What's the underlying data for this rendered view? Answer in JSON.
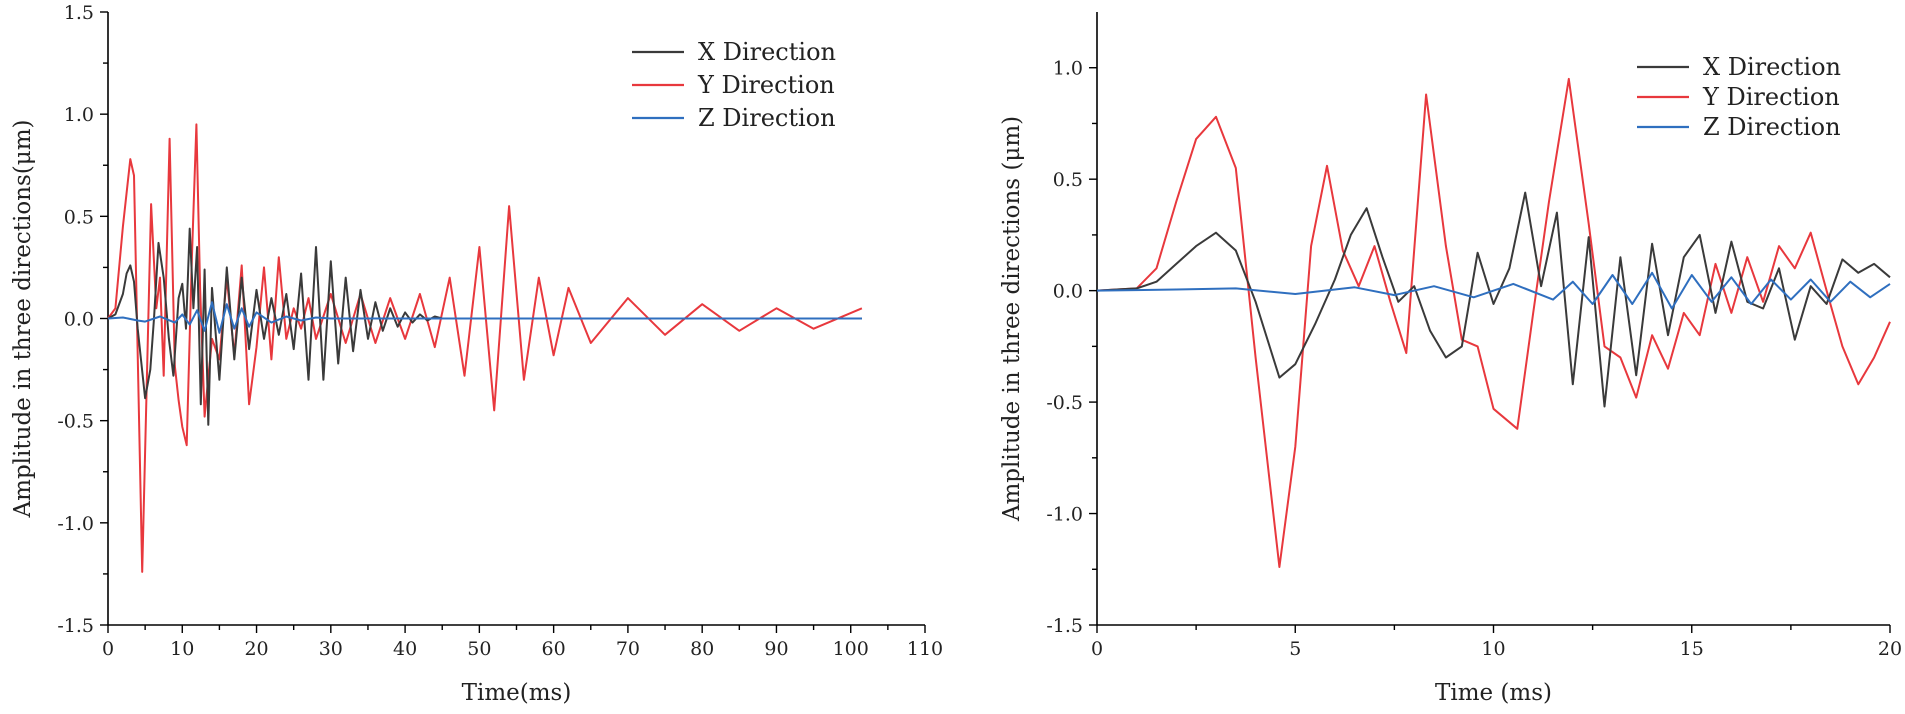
{
  "chart_data": [
    {
      "type": "line",
      "title": "",
      "xlabel": "Time(ms)",
      "ylabel": "Amplitude in three directions(μm)",
      "xlim": [
        0,
        110
      ],
      "ylim": [
        -1.5,
        1.5
      ],
      "xticks": [
        0,
        10,
        20,
        30,
        40,
        50,
        60,
        70,
        80,
        90,
        100,
        110
      ],
      "yticks": [
        -1.5,
        -1.0,
        -0.5,
        0.0,
        0.5,
        1.0,
        1.5
      ],
      "xtick_labels": [
        "0",
        "10",
        "20",
        "30",
        "40",
        "50",
        "60",
        "70",
        "80",
        "90",
        "100",
        "110"
      ],
      "ytick_labels": [
        "-1.5",
        "-1.0",
        "-0.5",
        "0.0",
        "0.5",
        "1.0",
        "1.5"
      ],
      "legend_position": "top-right",
      "series": [
        {
          "name": "X Direction",
          "color": "#3a3a3a",
          "x": [
            0,
            1,
            2,
            2.5,
            3,
            3.5,
            4,
            5,
            5.7,
            6.2,
            6.8,
            7.5,
            8.2,
            8.8,
            9.5,
            10,
            10.5,
            11,
            11.5,
            12,
            12.5,
            13,
            13.5,
            14,
            15,
            16,
            17,
            18,
            19,
            20,
            21,
            22,
            23,
            24,
            25,
            26,
            27,
            28,
            29,
            30,
            31,
            32,
            33,
            34,
            35,
            36,
            37,
            38,
            39,
            40,
            41,
            42,
            43,
            44,
            45,
            46,
            47,
            48,
            49,
            50,
            52,
            55,
            60,
            70,
            80,
            90,
            101.5
          ],
          "values": [
            0,
            0.02,
            0.12,
            0.22,
            0.26,
            0.18,
            -0.05,
            -0.39,
            -0.25,
            0.0,
            0.37,
            0.2,
            -0.1,
            -0.28,
            0.1,
            0.17,
            -0.05,
            0.44,
            0.05,
            0.35,
            -0.42,
            0.24,
            -0.52,
            0.15,
            -0.3,
            0.25,
            -0.2,
            0.2,
            -0.15,
            0.14,
            -0.1,
            0.1,
            -0.08,
            0.12,
            -0.15,
            0.22,
            -0.3,
            0.35,
            -0.3,
            0.28,
            -0.22,
            0.2,
            -0.16,
            0.14,
            -0.1,
            0.08,
            -0.06,
            0.05,
            -0.04,
            0.03,
            -0.02,
            0.02,
            -0.01,
            0.01,
            0,
            0,
            0,
            0,
            0,
            0,
            0,
            0,
            0,
            0,
            0,
            0,
            0
          ]
        },
        {
          "name": "Y Direction",
          "color": "#e8383d",
          "x": [
            0,
            1,
            2,
            3,
            3.5,
            4.6,
            5.8,
            6.5,
            7,
            7.5,
            8.3,
            9,
            9.5,
            10,
            10.6,
            11.3,
            11.9,
            12.4,
            13,
            14,
            15,
            16,
            17,
            18,
            19,
            20,
            21,
            22,
            23,
            24,
            25,
            26,
            27,
            28,
            30,
            32,
            34,
            36,
            38,
            40,
            42,
            44,
            46,
            48,
            50,
            52,
            54,
            56,
            58,
            60,
            62,
            65,
            70,
            75,
            80,
            85,
            90,
            95,
            101.5
          ],
          "values": [
            0,
            0.05,
            0.45,
            0.78,
            0.7,
            -1.24,
            0.56,
            0.05,
            0.2,
            -0.28,
            0.88,
            -0.23,
            -0.4,
            -0.53,
            -0.62,
            0.3,
            0.95,
            0.15,
            -0.48,
            -0.1,
            -0.2,
            0.2,
            -0.18,
            0.26,
            -0.42,
            -0.14,
            0.25,
            -0.2,
            0.3,
            -0.1,
            0.05,
            -0.05,
            0.1,
            -0.1,
            0.12,
            -0.12,
            0.12,
            -0.12,
            0.1,
            -0.1,
            0.12,
            -0.14,
            0.2,
            -0.28,
            0.35,
            -0.45,
            0.55,
            -0.3,
            0.2,
            -0.18,
            0.15,
            -0.12,
            0.1,
            -0.08,
            0.07,
            -0.06,
            0.05,
            -0.05,
            0.05
          ]
        },
        {
          "name": "Z Direction",
          "color": "#2f6fbf",
          "x": [
            0,
            2,
            4,
            5,
            7,
            9,
            10,
            11,
            12,
            13,
            14,
            15,
            16,
            17,
            18,
            19,
            20,
            22,
            24,
            26,
            28,
            30,
            40,
            60,
            80,
            101.5
          ],
          "values": [
            0,
            0.005,
            -0.01,
            -0.015,
            0.01,
            -0.02,
            0.02,
            -0.03,
            0.04,
            -0.06,
            0.08,
            -0.07,
            0.07,
            -0.05,
            0.05,
            -0.04,
            0.03,
            -0.02,
            0.01,
            -0.01,
            0.005,
            0,
            0,
            0,
            0,
            0
          ]
        }
      ]
    },
    {
      "type": "line",
      "title": "",
      "xlabel": "Time (ms)",
      "ylabel": "Amplitude in three directions (μm)",
      "xlim": [
        0,
        20
      ],
      "ylim": [
        -1.5,
        1.25
      ],
      "xticks": [
        0,
        5,
        10,
        15,
        20
      ],
      "yticks": [
        -1.5,
        -1.0,
        -0.5,
        0.0,
        0.5,
        1.0
      ],
      "xtick_labels": [
        "0",
        "5",
        "10",
        "15",
        "20"
      ],
      "ytick_labels": [
        "-1.5",
        "-1.0",
        "-0.5",
        "0.0",
        "0.5",
        "1.0"
      ],
      "legend_position": "top-right",
      "series": [
        {
          "name": "X Direction",
          "color": "#3a3a3a",
          "x": [
            0,
            1,
            1.5,
            2,
            2.5,
            3,
            3.5,
            4,
            4.6,
            5,
            5.5,
            6,
            6.4,
            6.8,
            7.2,
            7.6,
            8,
            8.4,
            8.8,
            9.2,
            9.6,
            10,
            10.4,
            10.8,
            11.2,
            11.6,
            12,
            12.4,
            12.8,
            13.2,
            13.6,
            14,
            14.4,
            14.8,
            15.2,
            15.6,
            16,
            16.4,
            16.8,
            17.2,
            17.6,
            18,
            18.4,
            18.8,
            19.2,
            19.6,
            20
          ],
          "values": [
            0,
            0.01,
            0.04,
            0.12,
            0.2,
            0.26,
            0.18,
            -0.05,
            -0.39,
            -0.33,
            -0.15,
            0.05,
            0.25,
            0.37,
            0.15,
            -0.05,
            0.02,
            -0.18,
            -0.3,
            -0.25,
            0.17,
            -0.06,
            0.1,
            0.44,
            0.02,
            0.35,
            -0.42,
            0.24,
            -0.52,
            0.15,
            -0.38,
            0.21,
            -0.2,
            0.15,
            0.25,
            -0.1,
            0.22,
            -0.05,
            -0.08,
            0.1,
            -0.22,
            0.02,
            -0.06,
            0.14,
            0.08,
            0.12,
            0.06
          ]
        },
        {
          "name": "Y Direction",
          "color": "#e8383d",
          "x": [
            0,
            1,
            1.5,
            2,
            2.5,
            3,
            3.5,
            4,
            4.6,
            5,
            5.4,
            5.8,
            6.2,
            6.6,
            7,
            7.4,
            7.8,
            8.3,
            8.8,
            9.2,
            9.6,
            10,
            10.6,
            11,
            11.4,
            11.9,
            12.4,
            12.8,
            13.2,
            13.6,
            14,
            14.4,
            14.8,
            15.2,
            15.6,
            16,
            16.4,
            16.8,
            17.2,
            17.6,
            18,
            18.4,
            18.8,
            19.2,
            19.6,
            20
          ],
          "values": [
            0,
            0.01,
            0.1,
            0.4,
            0.68,
            0.78,
            0.55,
            -0.3,
            -1.24,
            -0.7,
            0.2,
            0.56,
            0.18,
            0.02,
            0.2,
            -0.05,
            -0.28,
            0.88,
            0.2,
            -0.22,
            -0.25,
            -0.53,
            -0.62,
            -0.1,
            0.4,
            0.95,
            0.3,
            -0.25,
            -0.3,
            -0.48,
            -0.2,
            -0.35,
            -0.1,
            -0.2,
            0.12,
            -0.1,
            0.15,
            -0.05,
            0.2,
            0.1,
            0.26,
            0.0,
            -0.25,
            -0.42,
            -0.3,
            -0.14
          ]
        },
        {
          "name": "Z Direction",
          "color": "#2f6fbf",
          "x": [
            0,
            2,
            3.5,
            5,
            6.5,
            7.5,
            8.5,
            9.5,
            10.5,
            11.5,
            12,
            12.5,
            13,
            13.5,
            14,
            14.5,
            15,
            15.5,
            16,
            16.5,
            17,
            17.5,
            18,
            18.5,
            19,
            19.5,
            20
          ],
          "values": [
            0,
            0.005,
            0.01,
            -0.015,
            0.015,
            -0.02,
            0.02,
            -0.03,
            0.03,
            -0.04,
            0.04,
            -0.06,
            0.07,
            -0.06,
            0.08,
            -0.08,
            0.07,
            -0.05,
            0.06,
            -0.06,
            0.05,
            -0.04,
            0.05,
            -0.05,
            0.04,
            -0.03,
            0.03
          ]
        }
      ]
    }
  ]
}
